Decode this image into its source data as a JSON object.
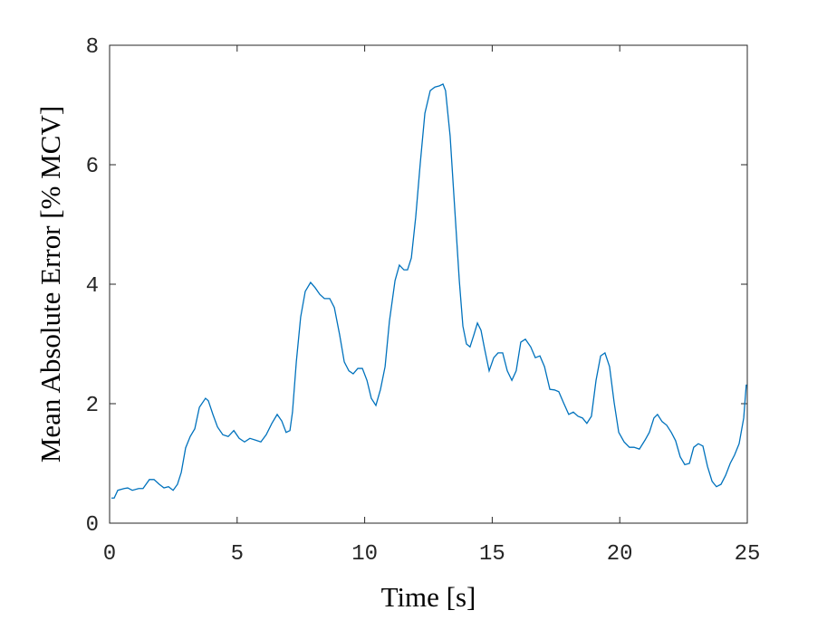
{
  "chart_data": {
    "type": "line",
    "xlabel": "Time [s]",
    "ylabel": "Mean Absolute Error [% MCV]",
    "color": "#0072bd",
    "xlim": [
      0,
      25
    ],
    "xticks": [
      0,
      5,
      10,
      15,
      20,
      25
    ],
    "ylim": [
      0,
      8
    ],
    "yticks": [
      0,
      2,
      4,
      6,
      8
    ],
    "x": [
      0.07,
      0.18,
      0.32,
      0.57,
      0.71,
      0.89,
      1.14,
      1.31,
      1.56,
      1.74,
      1.95,
      2.13,
      2.31,
      2.49,
      2.66,
      2.81,
      2.98,
      3.16,
      3.34,
      3.52,
      3.76,
      3.87,
      4.05,
      4.23,
      4.44,
      4.65,
      4.87,
      5.08,
      5.29,
      5.5,
      5.72,
      5.93,
      6.14,
      6.36,
      6.57,
      6.75,
      6.92,
      7.07,
      7.17,
      7.32,
      7.49,
      7.67,
      7.88,
      8.06,
      8.24,
      8.42,
      8.63,
      8.81,
      9.02,
      9.2,
      9.38,
      9.55,
      9.73,
      9.91,
      10.09,
      10.26,
      10.44,
      10.62,
      10.8,
      10.97,
      11.19,
      11.36,
      11.54,
      11.68,
      11.83,
      12.0,
      12.18,
      12.36,
      12.57,
      12.75,
      12.93,
      13.07,
      13.17,
      13.35,
      13.53,
      13.71,
      13.85,
      13.99,
      14.13,
      14.28,
      14.42,
      14.56,
      14.7,
      14.88,
      15.06,
      15.23,
      15.41,
      15.59,
      15.77,
      15.94,
      16.12,
      16.3,
      16.51,
      16.69,
      16.87,
      17.05,
      17.26,
      17.44,
      17.61,
      17.79,
      18.0,
      18.18,
      18.36,
      18.54,
      18.71,
      18.89,
      19.07,
      19.25,
      19.42,
      19.6,
      19.78,
      19.96,
      20.17,
      20.38,
      20.56,
      20.77,
      20.99,
      21.16,
      21.34,
      21.48,
      21.66,
      21.84,
      22.02,
      22.19,
      22.37,
      22.55,
      22.73,
      22.9,
      23.08,
      23.26,
      23.44,
      23.62,
      23.79,
      23.97,
      24.15,
      24.33,
      24.5,
      24.68,
      24.86,
      24.96
    ],
    "values": [
      0.42,
      0.42,
      0.55,
      0.58,
      0.59,
      0.55,
      0.58,
      0.58,
      0.73,
      0.73,
      0.65,
      0.59,
      0.61,
      0.55,
      0.65,
      0.85,
      1.26,
      1.45,
      1.58,
      1.94,
      2.09,
      2.05,
      1.82,
      1.61,
      1.48,
      1.45,
      1.55,
      1.42,
      1.36,
      1.42,
      1.39,
      1.36,
      1.48,
      1.67,
      1.82,
      1.71,
      1.52,
      1.55,
      1.86,
      2.7,
      3.45,
      3.88,
      4.03,
      3.94,
      3.83,
      3.76,
      3.76,
      3.61,
      3.15,
      2.7,
      2.55,
      2.5,
      2.59,
      2.59,
      2.39,
      2.09,
      1.97,
      2.24,
      2.62,
      3.38,
      4.06,
      4.32,
      4.24,
      4.24,
      4.44,
      5.12,
      6.03,
      6.86,
      7.24,
      7.3,
      7.32,
      7.35,
      7.24,
      6.48,
      5.27,
      4.06,
      3.3,
      3.0,
      2.95,
      3.15,
      3.35,
      3.23,
      2.92,
      2.55,
      2.77,
      2.85,
      2.85,
      2.55,
      2.39,
      2.55,
      3.03,
      3.08,
      2.95,
      2.77,
      2.8,
      2.62,
      2.24,
      2.23,
      2.2,
      2.02,
      1.82,
      1.86,
      1.79,
      1.76,
      1.67,
      1.79,
      2.39,
      2.8,
      2.85,
      2.62,
      2.02,
      1.52,
      1.36,
      1.27,
      1.27,
      1.24,
      1.39,
      1.52,
      1.76,
      1.82,
      1.7,
      1.64,
      1.52,
      1.38,
      1.11,
      0.98,
      1.0,
      1.27,
      1.33,
      1.29,
      0.95,
      0.7,
      0.61,
      0.65,
      0.8,
      1.0,
      1.14,
      1.33,
      1.76,
      2.32
    ]
  }
}
